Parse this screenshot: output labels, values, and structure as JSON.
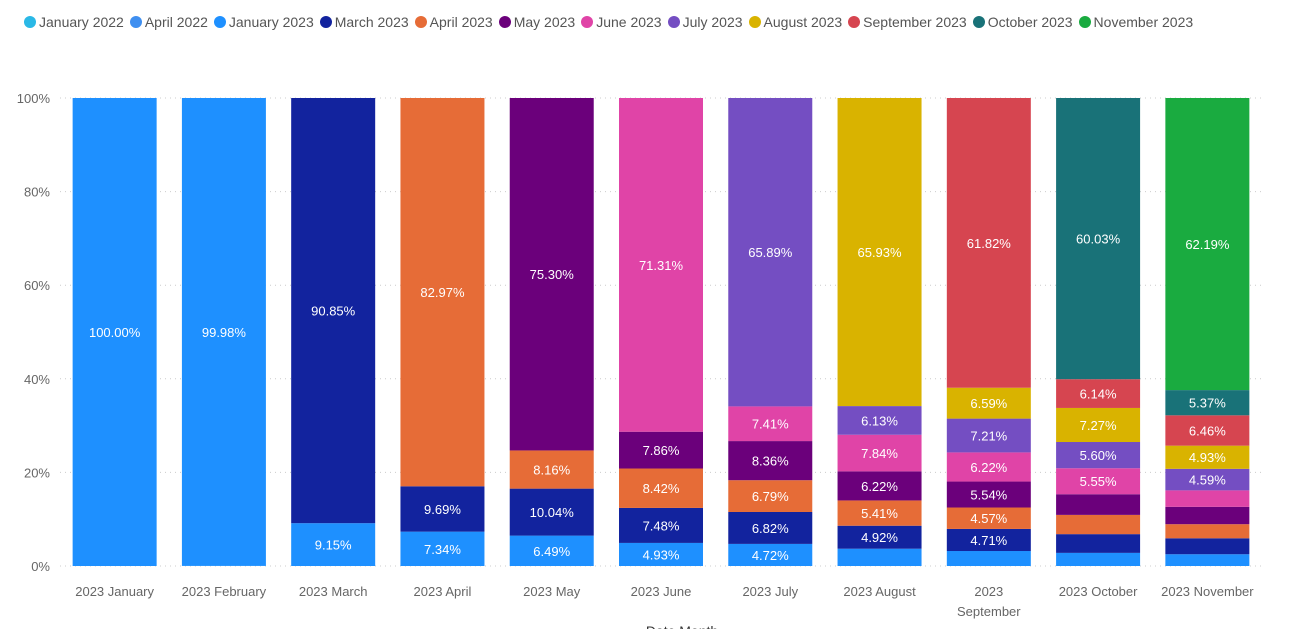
{
  "chart_data": {
    "type": "bar",
    "stacked": true,
    "percent_stacked": true,
    "xlabel": "Date Month",
    "ylabel": "",
    "ylim": [
      0,
      100
    ],
    "y_ticks": [
      "0%",
      "20%",
      "40%",
      "60%",
      "80%",
      "100%"
    ],
    "grid": true,
    "legend_position": "top-left",
    "categories": [
      "2023 January",
      "2023 February",
      "2023 March",
      "2023 April",
      "2023 May",
      "2023 June",
      "2023 July",
      "2023 August",
      "2023 September",
      "2023 October",
      "2023 November"
    ],
    "series": [
      {
        "name": "January 2022",
        "color": "#2ab8e6",
        "values": [
          0,
          0.02,
          0,
          0,
          0,
          0,
          0,
          0,
          0,
          0,
          0
        ]
      },
      {
        "name": "April 2022",
        "color": "#3f8ff0",
        "values": [
          0,
          0,
          0,
          0,
          0,
          0,
          0,
          0,
          0,
          0,
          0
        ]
      },
      {
        "name": "January 2023",
        "color": "#1e90ff",
        "values": [
          100.0,
          99.98,
          9.15,
          7.34,
          6.49,
          4.93,
          4.72,
          3.7,
          3.2,
          2.8,
          2.5
        ]
      },
      {
        "name": "March 2023",
        "color": "#12239e",
        "values": [
          null,
          null,
          90.85,
          9.69,
          10.04,
          7.48,
          6.82,
          4.92,
          4.71,
          4.0,
          3.4
        ]
      },
      {
        "name": "April 2023",
        "color": "#e66c37",
        "values": [
          null,
          null,
          null,
          82.97,
          8.16,
          8.42,
          6.79,
          5.41,
          4.57,
          4.11,
          3.0
        ]
      },
      {
        "name": "May 2023",
        "color": "#6b007b",
        "values": [
          null,
          null,
          null,
          null,
          75.3,
          7.86,
          8.36,
          6.22,
          5.54,
          4.41,
          3.7
        ]
      },
      {
        "name": "June 2023",
        "color": "#e044a7",
        "values": [
          null,
          null,
          null,
          null,
          null,
          71.31,
          7.41,
          7.84,
          6.22,
          5.55,
          3.5
        ]
      },
      {
        "name": "July 2023",
        "color": "#744ec2",
        "values": [
          null,
          null,
          null,
          null,
          null,
          null,
          65.89,
          6.13,
          7.21,
          5.6,
          4.59
        ]
      },
      {
        "name": "August 2023",
        "color": "#d9b300",
        "values": [
          null,
          null,
          null,
          null,
          null,
          null,
          null,
          65.93,
          6.59,
          7.27,
          4.93
        ]
      },
      {
        "name": "September 2023",
        "color": "#d64550",
        "values": [
          null,
          null,
          null,
          null,
          null,
          null,
          null,
          null,
          61.82,
          6.14,
          6.46
        ]
      },
      {
        "name": "October 2023",
        "color": "#197278",
        "values": [
          null,
          null,
          null,
          null,
          null,
          null,
          null,
          null,
          null,
          60.03,
          5.37
        ]
      },
      {
        "name": "November 2023",
        "color": "#1aab40",
        "values": [
          null,
          null,
          null,
          null,
          null,
          null,
          null,
          null,
          null,
          null,
          62.19
        ]
      }
    ]
  }
}
